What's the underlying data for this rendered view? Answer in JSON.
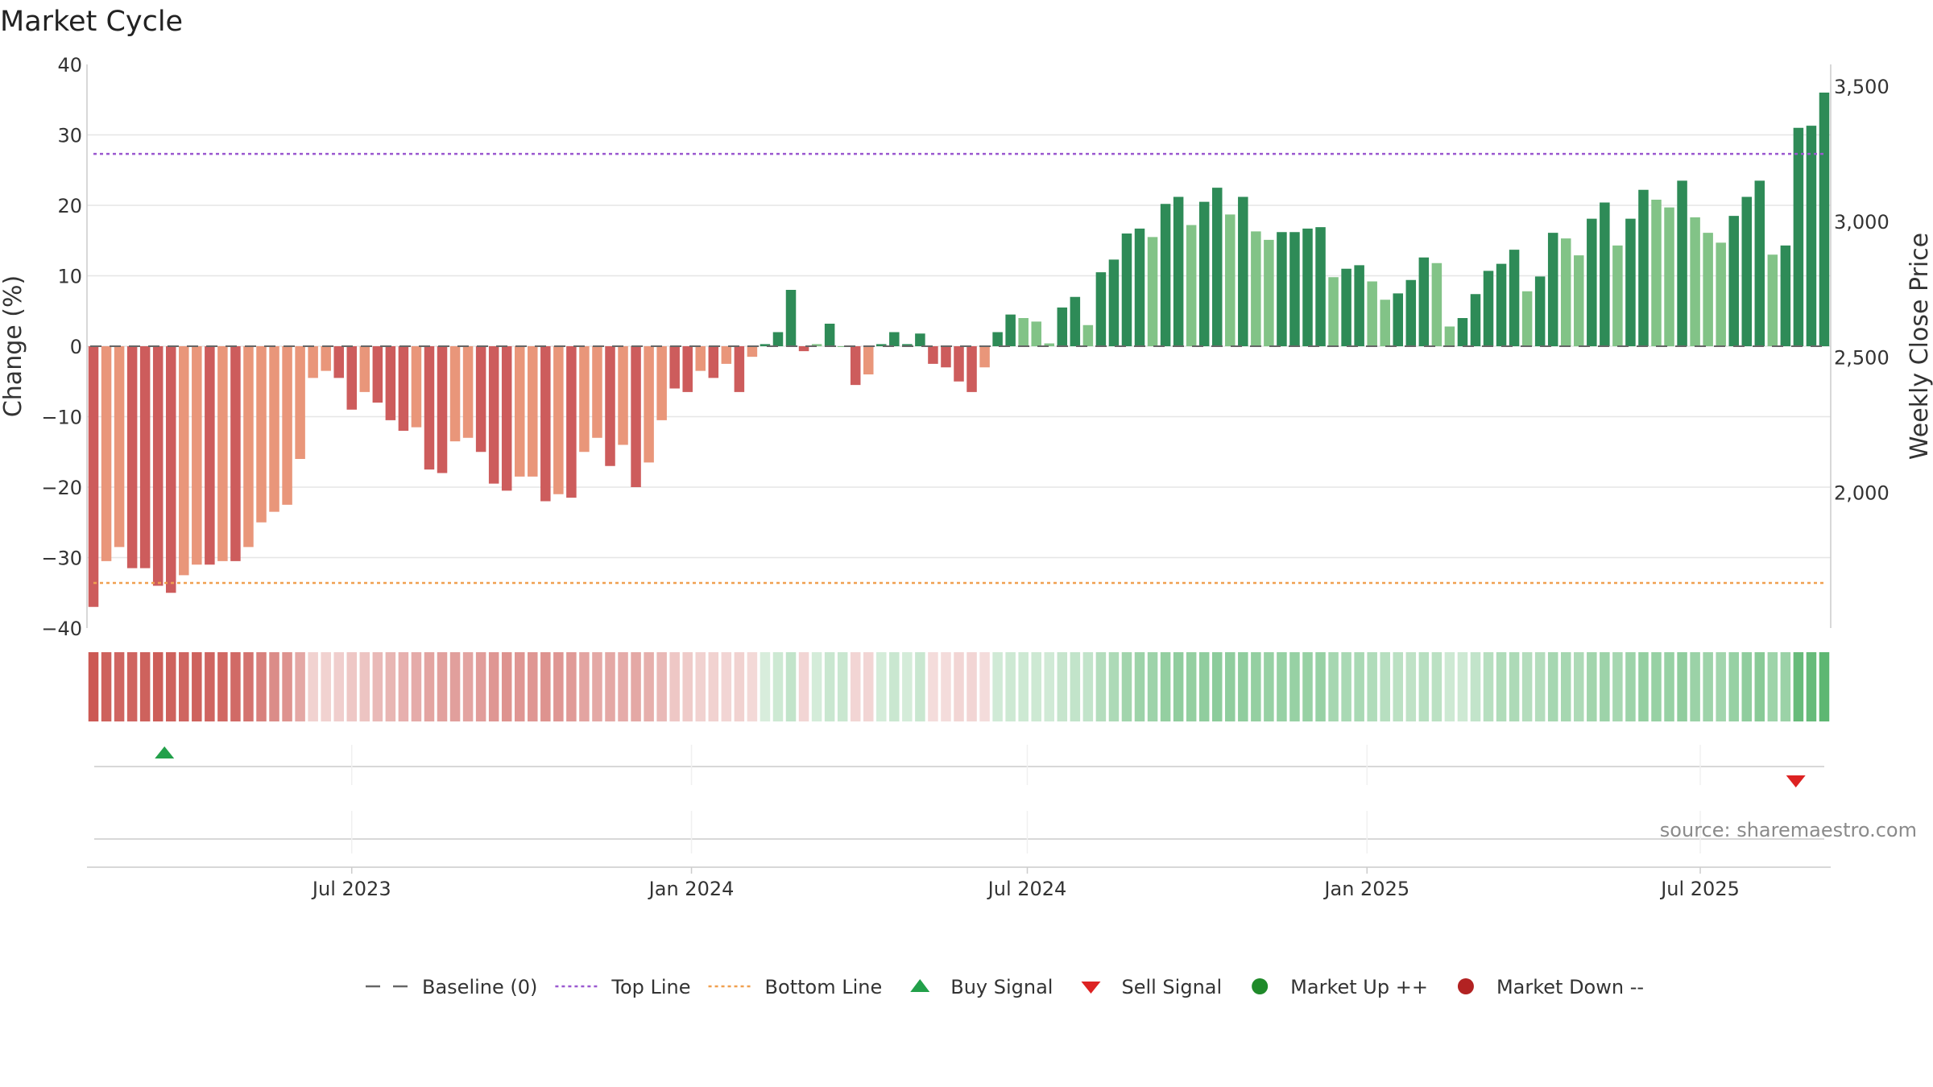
{
  "chart_data": {
    "type": "bar",
    "title": "Market Cycle",
    "ylabel_left": "Change (%)",
    "ylabel_right": "Weekly Close Price",
    "source": "source: sharemaestro.com",
    "ylim_left": [
      -40,
      40
    ],
    "left_ticks": [
      40,
      30,
      20,
      10,
      0,
      -10,
      -20,
      -30,
      -40
    ],
    "left_tick_labels": [
      "40",
      "30",
      "20",
      "10",
      "0",
      "−10",
      "−20",
      "−30",
      "−40"
    ],
    "right_ticks": [
      3500,
      3000,
      2500,
      2000
    ],
    "right_tick_labels": [
      "3,500",
      "3,000",
      "2,500",
      "2,000"
    ],
    "right_ylim": [
      1500,
      3580
    ],
    "x_ticks": [
      {
        "label": "Jul 2023",
        "week": 20
      },
      {
        "label": "Jan 2024",
        "week": 46.3
      },
      {
        "label": "Jul 2024",
        "week": 72.3
      },
      {
        "label": "Jan 2025",
        "week": 98.6
      },
      {
        "label": "Jul 2025",
        "week": 124.4
      }
    ],
    "baseline": 0,
    "top_line": 27.3,
    "bottom_line": -33.6,
    "colors": {
      "strong_down": "#cd5c5c",
      "weak_down": "#e9967a",
      "strong_up": "#2e8b57",
      "weak_up": "#82c387",
      "top_line": "#9b59d0",
      "bottom_line": "#f0a050",
      "baseline": "#666666",
      "buy": "#22a04a",
      "sell": "#dd2222",
      "market_up": "#1f8a2a",
      "market_down": "#b22222"
    },
    "values": [
      -37,
      -30.5,
      -28.5,
      -31.5,
      -31.5,
      -34,
      -35,
      -32.5,
      -31,
      -31,
      -30.5,
      -30.5,
      -28.5,
      -25,
      -23.5,
      -22.5,
      -16,
      -4.5,
      -3.5,
      -4.5,
      -9,
      -6.5,
      -8,
      -10.5,
      -12,
      -11.5,
      -17.5,
      -18,
      -13.5,
      -13,
      -15,
      -19.5,
      -20.5,
      -18.5,
      -18.5,
      -22,
      -21,
      -21.5,
      -15,
      -13,
      -17,
      -14,
      -20,
      -16.5,
      -10.5,
      -6,
      -6.5,
      -3.5,
      -4.5,
      -2.5,
      -6.5,
      -1.5,
      0.3,
      2,
      8,
      -0.7,
      0.3,
      3.2,
      0,
      -5.5,
      -4,
      0.3,
      2,
      0.3,
      1.8,
      -2.5,
      -3,
      -5,
      -6.5,
      -3,
      2,
      4.5,
      4,
      3.5,
      0.4,
      5.5,
      7,
      3,
      10.5,
      12.3,
      16,
      16.7,
      15.5,
      20.2,
      21.2,
      17.2,
      20.5,
      22.5,
      18.7,
      21.2,
      16.3,
      15.1,
      16.2,
      16.2,
      16.7,
      16.9,
      9.8,
      11,
      11.5,
      9.2,
      6.6,
      7.5,
      9.4,
      12.6,
      11.8,
      2.8,
      4,
      7.4,
      10.7,
      11.7,
      13.7,
      7.8,
      9.9,
      16.1,
      15.3,
      12.9,
      18.1,
      20.4,
      14.3,
      18.1,
      22.2,
      20.8,
      19.7,
      23.5,
      18.3,
      16.1,
      14.7,
      18.5,
      21.2,
      23.5,
      13,
      14.3,
      31,
      31.3,
      36
    ],
    "strengths": [
      1,
      0,
      0,
      1,
      1,
      1,
      1,
      0,
      0,
      1,
      0,
      1,
      0,
      0,
      0,
      0,
      0,
      0,
      0,
      1,
      1,
      0,
      1,
      1,
      1,
      0,
      1,
      1,
      0,
      0,
      1,
      1,
      1,
      0,
      0,
      1,
      0,
      1,
      0,
      0,
      1,
      0,
      1,
      0,
      0,
      1,
      1,
      0,
      1,
      0,
      1,
      0,
      1,
      1,
      1,
      1,
      0,
      1,
      0,
      1,
      0,
      1,
      1,
      1,
      1,
      1,
      1,
      1,
      1,
      0,
      1,
      1,
      0,
      0,
      0,
      1,
      1,
      0,
      1,
      1,
      1,
      1,
      0,
      1,
      1,
      0,
      1,
      1,
      0,
      1,
      0,
      0,
      1,
      1,
      1,
      1,
      0,
      1,
      1,
      0,
      0,
      1,
      1,
      1,
      0,
      0,
      1,
      1,
      1,
      1,
      1,
      0,
      1,
      1,
      0,
      0,
      1,
      1,
      0,
      1,
      1,
      0,
      0,
      1,
      0,
      0,
      0,
      1,
      1,
      1,
      0,
      1,
      1,
      1,
      1
    ],
    "heat_levels": [
      0.95,
      0.9,
      0.88,
      0.88,
      0.9,
      0.92,
      0.9,
      0.88,
      0.9,
      0.88,
      0.86,
      0.85,
      0.8,
      0.72,
      0.66,
      0.62,
      0.5,
      0.26,
      0.26,
      0.28,
      0.32,
      0.34,
      0.4,
      0.42,
      0.45,
      0.48,
      0.52,
      0.54,
      0.55,
      0.52,
      0.56,
      0.6,
      0.62,
      0.6,
      0.6,
      0.62,
      0.6,
      0.58,
      0.52,
      0.5,
      0.5,
      0.48,
      0.5,
      0.46,
      0.4,
      0.32,
      0.3,
      0.26,
      0.26,
      0.24,
      0.26,
      0.22,
      0.22,
      0.28,
      0.34,
      0.24,
      0.24,
      0.3,
      0.3,
      0.24,
      0.24,
      0.24,
      0.3,
      0.24,
      0.3,
      0.2,
      0.2,
      0.24,
      0.24,
      0.2,
      0.26,
      0.28,
      0.28,
      0.28,
      0.26,
      0.32,
      0.34,
      0.34,
      0.42,
      0.46,
      0.52,
      0.55,
      0.55,
      0.6,
      0.62,
      0.6,
      0.62,
      0.64,
      0.62,
      0.62,
      0.6,
      0.58,
      0.58,
      0.58,
      0.58,
      0.58,
      0.5,
      0.48,
      0.48,
      0.44,
      0.4,
      0.38,
      0.36,
      0.4,
      0.38,
      0.28,
      0.28,
      0.34,
      0.4,
      0.44,
      0.46,
      0.42,
      0.42,
      0.5,
      0.5,
      0.46,
      0.52,
      0.55,
      0.5,
      0.55,
      0.6,
      0.58,
      0.58,
      0.62,
      0.56,
      0.55,
      0.52,
      0.58,
      0.62,
      0.66,
      0.54,
      0.56,
      0.85,
      0.85,
      0.9
    ],
    "signals": [
      {
        "type": "buy",
        "week": 5.5
      },
      {
        "type": "sell",
        "week": 131.8
      }
    ],
    "legend": [
      {
        "label": "Baseline (0)",
        "symbol": "dash",
        "color_key": "baseline"
      },
      {
        "label": "Top Line",
        "symbol": "dot",
        "color_key": "top_line"
      },
      {
        "label": "Bottom Line",
        "symbol": "dot",
        "color_key": "bottom_line"
      },
      {
        "label": "Buy Signal",
        "symbol": "triangle-up",
        "color_key": "buy"
      },
      {
        "label": "Sell Signal",
        "symbol": "triangle-down",
        "color_key": "sell"
      },
      {
        "label": "Market Up ++",
        "symbol": "circle",
        "color_key": "market_up"
      },
      {
        "label": "Market Down --",
        "symbol": "circle",
        "color_key": "market_down"
      }
    ]
  }
}
